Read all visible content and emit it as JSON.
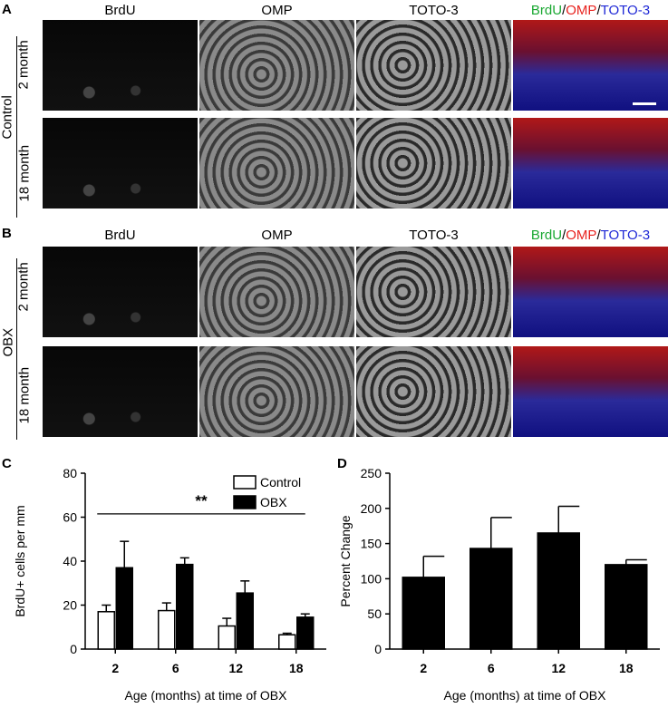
{
  "panels": {
    "a": "A",
    "b": "B",
    "c": "C",
    "d": "D"
  },
  "col_headers": [
    "BrdU",
    "OMP",
    "TOTO-3"
  ],
  "merge_header": {
    "brdu": "BrdU",
    "slash1": "/",
    "omp": "OMP",
    "slash2": "/",
    "toto": "TOTO-3"
  },
  "groups": {
    "control": "Control",
    "obx": "OBX"
  },
  "rows": {
    "r1": "2 month",
    "r2": "18 month"
  },
  "colors": {
    "brdu": "#1aa832",
    "omp": "#e8231f",
    "toto": "#1f28d6"
  },
  "chart_data": [
    {
      "type": "bar",
      "categories": [
        "2",
        "6",
        "12",
        "18"
      ],
      "series": [
        {
          "name": "Control",
          "values": [
            17,
            17.5,
            10.5,
            6.5
          ],
          "errors": [
            3,
            3.5,
            3.5,
            0.7
          ]
        },
        {
          "name": "OBX",
          "values": [
            37,
            38.5,
            25.5,
            14.5
          ],
          "errors": [
            12,
            3,
            5.5,
            1.5
          ]
        }
      ],
      "xlabel": "Age (months) at time of OBX",
      "ylabel": "BrdU+ cells per mm",
      "ylim": [
        0,
        80
      ],
      "yticks": [
        "0",
        "20",
        "40",
        "60",
        "80"
      ],
      "annotation": "**",
      "legend": "top-right"
    },
    {
      "type": "bar",
      "categories": [
        "2",
        "6",
        "12",
        "18"
      ],
      "values": [
        102,
        143,
        165,
        120
      ],
      "errors": [
        30,
        44,
        38,
        7
      ],
      "xlabel": "Age (months) at time of OBX",
      "ylabel": "Percent Change",
      "ylim": [
        0,
        250
      ],
      "yticks": [
        "0",
        "50",
        "100",
        "150",
        "200",
        "250"
      ]
    }
  ]
}
